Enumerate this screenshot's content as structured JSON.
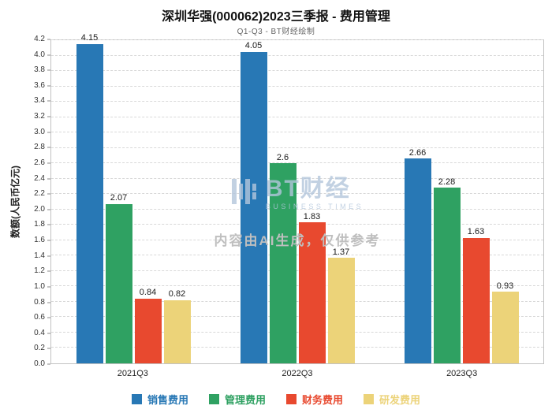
{
  "title": "深圳华强(000062)2023三季报 - 费用管理",
  "subtitle": "Q1-Q3 - BT财经绘制",
  "watermark": {
    "logo_text": "BT财经",
    "logo_sub": "BUSINESS TIMES",
    "disclaimer": "内容由AI生成，仅供参考"
  },
  "chart_data": {
    "type": "bar",
    "title": "深圳华强(000062)2023三季报 - 费用管理",
    "subtitle": "Q1-Q3 - BT财经绘制",
    "categories": [
      "2021Q3",
      "2022Q3",
      "2023Q3"
    ],
    "series": [
      {
        "name": "销售费用",
        "color": "#2878b5",
        "values": [
          4.15,
          4.05,
          2.66
        ]
      },
      {
        "name": "管理费用",
        "color": "#2fa162",
        "values": [
          2.07,
          2.6,
          2.28
        ]
      },
      {
        "name": "财务费用",
        "color": "#e8492f",
        "values": [
          0.84,
          1.83,
          1.63
        ]
      },
      {
        "name": "研发费用",
        "color": "#ecd379",
        "values": [
          0.82,
          1.37,
          0.93
        ]
      }
    ],
    "xlabel": "",
    "ylabel": "数额(人民币亿元)",
    "ylim": [
      0,
      4.2
    ],
    "ytick_step": 0.2,
    "grid": true,
    "legend_position": "bottom"
  }
}
